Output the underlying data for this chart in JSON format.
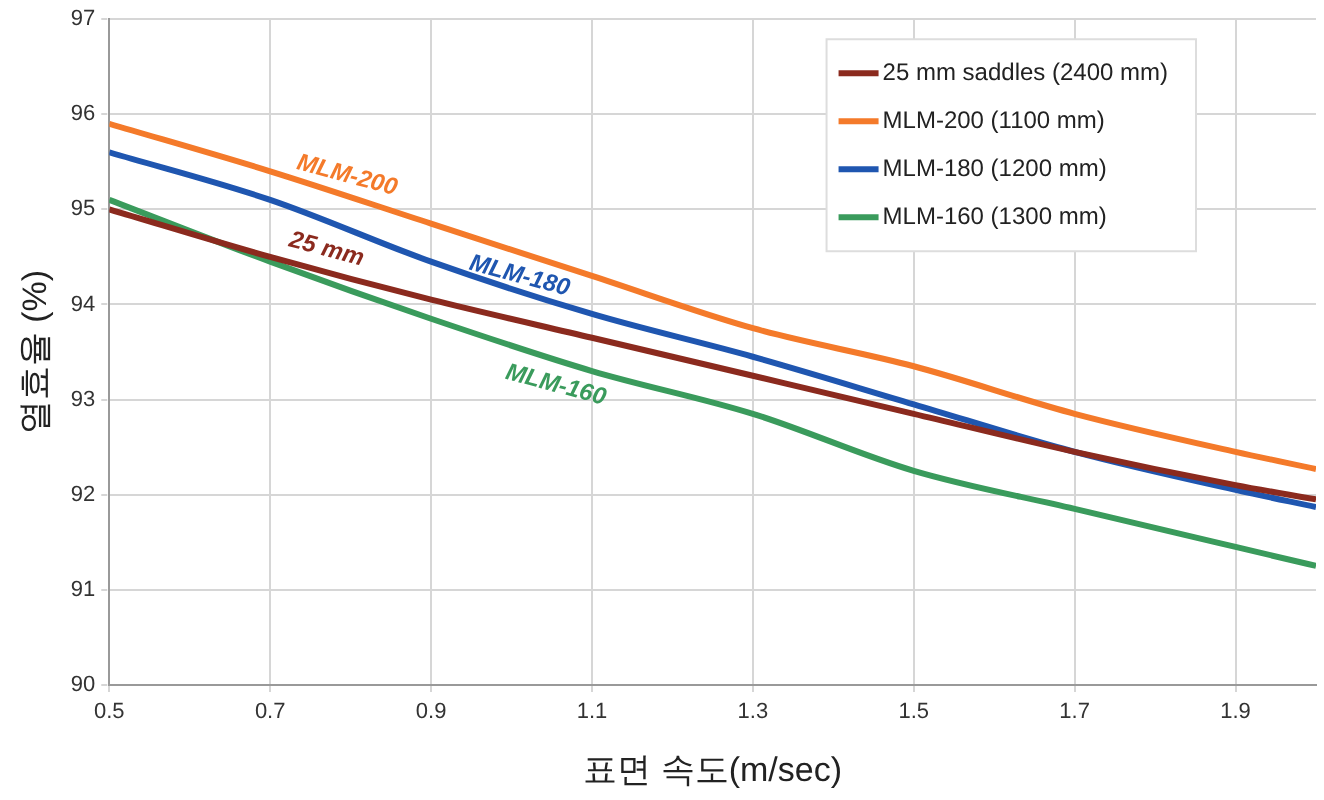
{
  "chart_data": {
    "type": "line",
    "xlabel": "표면 속도(m/sec)",
    "ylabel": "열효율 (%)",
    "x": [
      0.5,
      0.7,
      0.9,
      1.1,
      1.3,
      1.5,
      1.7,
      1.9,
      2.0
    ],
    "series": [
      {
        "name": "25 mm saddles (2400 mm)",
        "color": "#8b2a1e",
        "values": [
          95.0,
          94.5,
          94.05,
          93.65,
          93.25,
          92.85,
          92.45,
          92.1,
          91.95
        ]
      },
      {
        "name": "MLM-200 (1100 mm)",
        "color": "#f47a2a",
        "values": [
          95.9,
          95.4,
          94.85,
          94.3,
          93.75,
          93.35,
          92.85,
          92.45,
          92.27
        ]
      },
      {
        "name": "MLM-180 (1200 mm)",
        "color": "#1f56b0",
        "values": [
          95.6,
          95.1,
          94.45,
          93.9,
          93.45,
          92.95,
          92.45,
          92.05,
          91.87
        ]
      },
      {
        "name": "MLM-160 (1300 mm)",
        "color": "#3a9b5c",
        "values": [
          95.1,
          94.45,
          93.85,
          93.3,
          92.85,
          92.25,
          91.85,
          91.45,
          91.25
        ]
      }
    ],
    "annotations": [
      "MLM-200",
      "25 mm",
      "MLM-180",
      "MLM-160"
    ],
    "xlim": [
      0.5,
      2.0
    ],
    "xticks": [
      0.5,
      0.7,
      0.9,
      1.1,
      1.3,
      1.5,
      1.7,
      1.9
    ],
    "ylim": [
      90,
      97
    ],
    "yticks": [
      90,
      91,
      92,
      93,
      94,
      95,
      96,
      97
    ],
    "grid": true,
    "legend": "top right",
    "marker": "none",
    "line_style": "solid"
  }
}
